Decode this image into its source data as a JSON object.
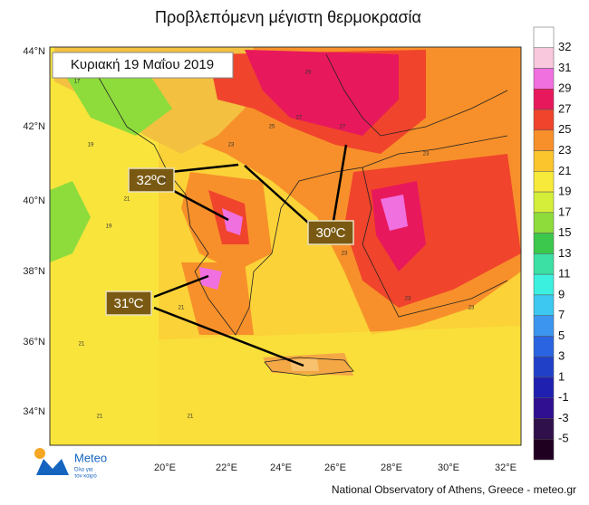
{
  "header": {
    "title": "Προβλεπόμενη μέγιστη θερμοκρασία",
    "date": "Κυριακή 19 Μαΐου 2019"
  },
  "callouts": [
    "32ºC",
    "30ºC",
    "31ºC"
  ],
  "lat_labels": [
    "44°N",
    "42°N",
    "40°N",
    "38°N",
    "36°N",
    "34°N"
  ],
  "lon_labels": [
    "20°E",
    "22°E",
    "24°E",
    "26°E",
    "28°E",
    "30°E",
    "32°E"
  ],
  "colorbar": {
    "labels": [
      "32",
      "31",
      "29",
      "27",
      "25",
      "23",
      "21",
      "19",
      "17",
      "15",
      "13",
      "11",
      "9",
      "7",
      "5",
      "3",
      "1",
      "-1",
      "-3",
      "-5"
    ],
    "colors": [
      "#ffffff",
      "#f9c8dc",
      "#f070e0",
      "#e8185c",
      "#f0442c",
      "#f7902a",
      "#fbc52e",
      "#f8ea3a",
      "#d4ee3a",
      "#8edc3c",
      "#3cc84c",
      "#3ce0a4",
      "#3cf0e0",
      "#3cc8f0",
      "#3c96f0",
      "#2a64e0",
      "#2040c8",
      "#2020b0",
      "#301090",
      "#30104a",
      "#200020"
    ]
  },
  "map_labels": [
    "17",
    "19",
    "21",
    "23",
    "25",
    "27",
    "29",
    "19",
    "21",
    "23",
    "23",
    "21",
    "19",
    "27",
    "23",
    "21",
    "21",
    "23"
  ],
  "logo": {
    "name": "Meteo",
    "tagline_1": "Όλα για",
    "tagline_2": "τον καιρό"
  },
  "footer": "National Observatory of Athens, Greece - meteo.gr"
}
